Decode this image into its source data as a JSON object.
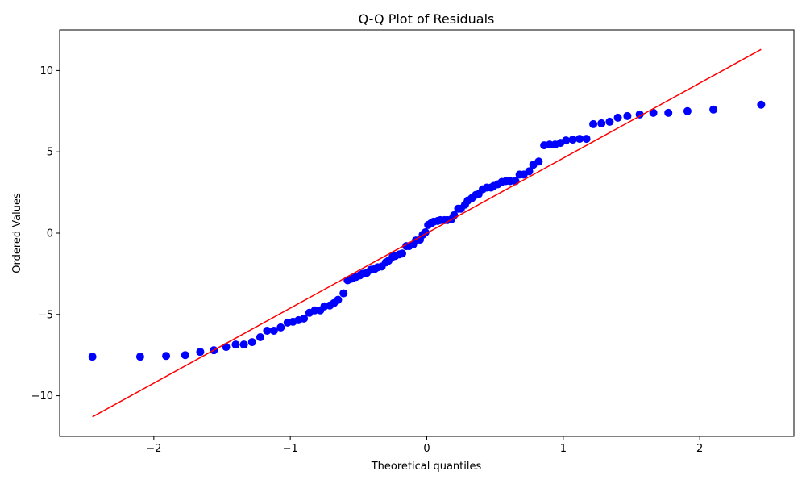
{
  "chart_data": {
    "type": "scatter",
    "title": "Q-Q Plot of Residuals",
    "xlabel": "Theoretical quantiles",
    "ylabel": "Ordered Values",
    "xlim": [
      -2.69,
      2.69
    ],
    "ylim": [
      -12.5,
      12.5
    ],
    "xticks": [
      -2,
      -1,
      0,
      1,
      2
    ],
    "xtick_labels": [
      "−2",
      "−1",
      "0",
      "1",
      "2"
    ],
    "yticks": [
      -10,
      -5,
      0,
      5,
      10
    ],
    "ytick_labels": [
      "−10",
      "−5",
      "0",
      "5",
      "10"
    ],
    "grid": false,
    "colors": {
      "points": "#0000ff",
      "line": "#ff0000"
    },
    "series": [
      {
        "kind": "points",
        "x": [
          -2.45,
          -2.1,
          -1.91,
          -1.77,
          -1.66,
          -1.56,
          -1.47,
          -1.4,
          -1.34,
          -1.28,
          -1.22,
          -1.17,
          -1.12,
          -1.07,
          -1.02,
          -0.98,
          -0.94,
          -0.9,
          -0.86,
          -0.82,
          -0.78,
          -0.75,
          -0.71,
          -0.68,
          -0.65,
          -0.61,
          -0.58,
          -0.55,
          -0.52,
          -0.49,
          -0.47,
          -0.44,
          -0.41,
          -0.38,
          -0.36,
          -0.33,
          -0.3,
          -0.28,
          -0.25,
          -0.23,
          -0.2,
          -0.18,
          -0.15,
          -0.13,
          -0.1,
          -0.08,
          -0.05,
          -0.03,
          -0.01,
          0.01,
          0.03,
          0.05,
          0.08,
          0.1,
          0.13,
          0.15,
          0.18,
          0.2,
          0.23,
          0.25,
          0.28,
          0.3,
          0.33,
          0.36,
          0.38,
          0.41,
          0.44,
          0.47,
          0.49,
          0.52,
          0.55,
          0.58,
          0.61,
          0.65,
          0.68,
          0.71,
          0.75,
          0.78,
          0.82,
          0.86,
          0.9,
          0.94,
          0.98,
          1.02,
          1.07,
          1.12,
          1.17,
          1.22,
          1.28,
          1.34,
          1.4,
          1.47,
          1.56,
          1.66,
          1.77,
          1.91,
          2.1,
          2.45
        ],
        "y": [
          -7.6,
          -7.6,
          -7.55,
          -7.5,
          -7.3,
          -7.2,
          -7.0,
          -6.85,
          -6.85,
          -6.7,
          -6.4,
          -6.0,
          -6.0,
          -5.8,
          -5.5,
          -5.45,
          -5.35,
          -5.25,
          -4.9,
          -4.75,
          -4.75,
          -4.5,
          -4.45,
          -4.3,
          -4.1,
          -3.7,
          -2.9,
          -2.8,
          -2.7,
          -2.6,
          -2.5,
          -2.45,
          -2.25,
          -2.2,
          -2.1,
          -2.05,
          -1.8,
          -1.7,
          -1.45,
          -1.4,
          -1.3,
          -1.25,
          -0.8,
          -0.8,
          -0.7,
          -0.45,
          -0.4,
          -0.1,
          0.05,
          0.5,
          0.6,
          0.7,
          0.75,
          0.8,
          0.8,
          0.8,
          0.85,
          1.1,
          1.5,
          1.5,
          1.75,
          2.0,
          2.15,
          2.35,
          2.4,
          2.7,
          2.8,
          2.8,
          2.9,
          3.0,
          3.15,
          3.2,
          3.2,
          3.2,
          3.6,
          3.6,
          3.8,
          4.2,
          4.4,
          5.4,
          5.45,
          5.45,
          5.55,
          5.7,
          5.75,
          5.8,
          5.8,
          6.7,
          6.75,
          6.85,
          7.1,
          7.2,
          7.3,
          7.4,
          7.4,
          7.5,
          7.6,
          7.9
        ]
      },
      {
        "kind": "line",
        "x": [
          -2.45,
          2.45
        ],
        "y": [
          -11.3,
          11.3
        ]
      }
    ]
  }
}
